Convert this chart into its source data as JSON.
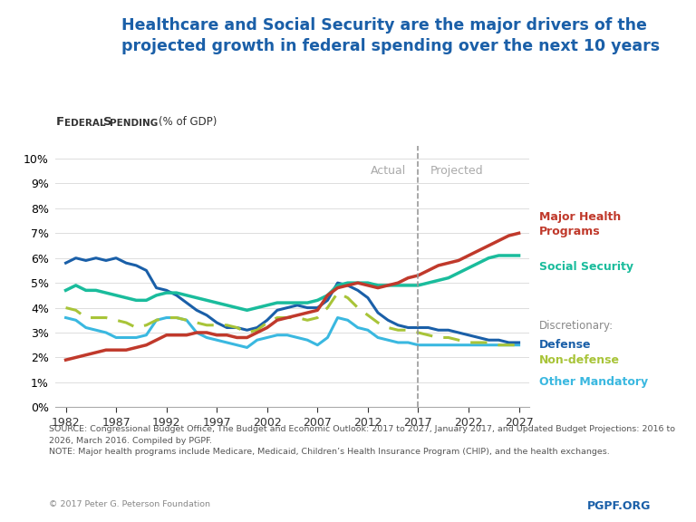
{
  "title_main": "Healthcare and Social Security are the major drivers of the\nprojected growth in federal spending over the next 10 years",
  "ylabel": "Federal Spending (% of GDP)",
  "source_text": "SOURCE: Congressional Budget Office, The Budget and Economic Outlook: 2017 to 2027, January 2017, and Updated Budget Projections: 2016 to\n2026, March 2016. Compiled by PGPF.\nNOTE: Major health programs include Medicare, Medicaid, Children’s Health Insurance Program (CHIP), and the health exchanges.",
  "copyright_text": "© 2017 Peter G. Peterson Foundation",
  "pgpf_text": "PGPF.ORG",
  "actual_label": "Actual",
  "projected_label": "Projected",
  "divider_year": 2017,
  "x_ticks": [
    1982,
    1987,
    1992,
    1997,
    2002,
    2007,
    2012,
    2017,
    2022,
    2027
  ],
  "y_ticks": [
    "0%",
    "1%",
    "2%",
    "3%",
    "4%",
    "5%",
    "6%",
    "7%",
    "8%",
    "9%",
    "10%"
  ],
  "y_values": [
    0,
    1,
    2,
    3,
    4,
    5,
    6,
    7,
    8,
    9,
    10
  ],
  "xlim": [
    1981,
    2028
  ],
  "ylim": [
    0,
    10.5
  ],
  "bg_color": "#ffffff",
  "blue_header": "#1a5fa8",
  "series": {
    "major_health": {
      "color": "#c0392b",
      "label": "Major Health\nPrograms",
      "years": [
        1982,
        1983,
        1984,
        1985,
        1986,
        1987,
        1988,
        1989,
        1990,
        1991,
        1992,
        1993,
        1994,
        1995,
        1996,
        1997,
        1998,
        1999,
        2000,
        2001,
        2002,
        2003,
        2004,
        2005,
        2006,
        2007,
        2008,
        2009,
        2010,
        2011,
        2012,
        2013,
        2014,
        2015,
        2016,
        2017,
        2018,
        2019,
        2020,
        2021,
        2022,
        2023,
        2024,
        2025,
        2026,
        2027
      ],
      "values": [
        1.9,
        2.0,
        2.1,
        2.2,
        2.3,
        2.3,
        2.3,
        2.4,
        2.5,
        2.7,
        2.9,
        2.9,
        2.9,
        3.0,
        3.0,
        2.9,
        2.9,
        2.8,
        2.8,
        3.0,
        3.2,
        3.5,
        3.6,
        3.7,
        3.8,
        3.9,
        4.5,
        4.8,
        4.9,
        5.0,
        4.9,
        4.8,
        4.9,
        5.0,
        5.2,
        5.3,
        5.5,
        5.7,
        5.8,
        5.9,
        6.1,
        6.3,
        6.5,
        6.7,
        6.9,
        7.0
      ]
    },
    "social_security": {
      "color": "#1abc9c",
      "label": "Social Security",
      "years": [
        1982,
        1983,
        1984,
        1985,
        1986,
        1987,
        1988,
        1989,
        1990,
        1991,
        1992,
        1993,
        1994,
        1995,
        1996,
        1997,
        1998,
        1999,
        2000,
        2001,
        2002,
        2003,
        2004,
        2005,
        2006,
        2007,
        2008,
        2009,
        2010,
        2011,
        2012,
        2013,
        2014,
        2015,
        2016,
        2017,
        2018,
        2019,
        2020,
        2021,
        2022,
        2023,
        2024,
        2025,
        2026,
        2027
      ],
      "values": [
        4.7,
        4.9,
        4.7,
        4.7,
        4.6,
        4.5,
        4.4,
        4.3,
        4.3,
        4.5,
        4.6,
        4.6,
        4.5,
        4.4,
        4.3,
        4.2,
        4.1,
        4.0,
        3.9,
        4.0,
        4.1,
        4.2,
        4.2,
        4.2,
        4.2,
        4.3,
        4.5,
        4.9,
        5.0,
        5.0,
        5.0,
        4.9,
        4.9,
        4.9,
        4.9,
        4.9,
        5.0,
        5.1,
        5.2,
        5.4,
        5.6,
        5.8,
        6.0,
        6.1,
        6.1,
        6.1
      ]
    },
    "defense": {
      "color": "#1a5fa8",
      "label": "Defense",
      "years": [
        1982,
        1983,
        1984,
        1985,
        1986,
        1987,
        1988,
        1989,
        1990,
        1991,
        1992,
        1993,
        1994,
        1995,
        1996,
        1997,
        1998,
        1999,
        2000,
        2001,
        2002,
        2003,
        2004,
        2005,
        2006,
        2007,
        2008,
        2009,
        2010,
        2011,
        2012,
        2013,
        2014,
        2015,
        2016,
        2017,
        2018,
        2019,
        2020,
        2021,
        2022,
        2023,
        2024,
        2025,
        2026,
        2027
      ],
      "values": [
        5.8,
        6.0,
        5.9,
        6.0,
        5.9,
        6.0,
        5.8,
        5.7,
        5.5,
        4.8,
        4.7,
        4.5,
        4.2,
        3.9,
        3.7,
        3.4,
        3.2,
        3.2,
        3.1,
        3.2,
        3.5,
        3.9,
        4.0,
        4.1,
        4.0,
        4.0,
        4.3,
        5.0,
        4.9,
        4.7,
        4.4,
        3.8,
        3.5,
        3.3,
        3.2,
        3.2,
        3.2,
        3.1,
        3.1,
        3.0,
        2.9,
        2.8,
        2.7,
        2.7,
        2.6,
        2.6
      ]
    },
    "non_defense": {
      "color": "#a8c438",
      "label": "Non-defense",
      "style": "dashed",
      "years": [
        1982,
        1983,
        1984,
        1985,
        1986,
        1987,
        1988,
        1989,
        1990,
        1991,
        1992,
        1993,
        1994,
        1995,
        1996,
        1997,
        1998,
        1999,
        2000,
        2001,
        2002,
        2003,
        2004,
        2005,
        2006,
        2007,
        2008,
        2009,
        2010,
        2011,
        2012,
        2013,
        2014,
        2015,
        2016,
        2017,
        2018,
        2019,
        2020,
        2021,
        2022,
        2023,
        2024,
        2025,
        2026,
        2027
      ],
      "values": [
        4.0,
        3.9,
        3.6,
        3.6,
        3.6,
        3.5,
        3.4,
        3.2,
        3.3,
        3.5,
        3.6,
        3.6,
        3.5,
        3.4,
        3.3,
        3.3,
        3.3,
        3.2,
        3.0,
        3.1,
        3.4,
        3.6,
        3.6,
        3.6,
        3.5,
        3.6,
        4.0,
        4.6,
        4.4,
        4.0,
        3.7,
        3.4,
        3.2,
        3.1,
        3.1,
        3.0,
        2.9,
        2.8,
        2.8,
        2.7,
        2.6,
        2.6,
        2.6,
        2.5,
        2.5,
        2.5
      ]
    },
    "other_mandatory": {
      "color": "#3ab8e0",
      "label": "Other Mandatory",
      "years": [
        1982,
        1983,
        1984,
        1985,
        1986,
        1987,
        1988,
        1989,
        1990,
        1991,
        1992,
        1993,
        1994,
        1995,
        1996,
        1997,
        1998,
        1999,
        2000,
        2001,
        2002,
        2003,
        2004,
        2005,
        2006,
        2007,
        2008,
        2009,
        2010,
        2011,
        2012,
        2013,
        2014,
        2015,
        2016,
        2017,
        2018,
        2019,
        2020,
        2021,
        2022,
        2023,
        2024,
        2025,
        2026,
        2027
      ],
      "values": [
        3.6,
        3.5,
        3.2,
        3.1,
        3.0,
        2.8,
        2.8,
        2.8,
        2.9,
        3.5,
        3.6,
        3.6,
        3.5,
        3.0,
        2.8,
        2.7,
        2.6,
        2.5,
        2.4,
        2.7,
        2.8,
        2.9,
        2.9,
        2.8,
        2.7,
        2.5,
        2.8,
        3.6,
        3.5,
        3.2,
        3.1,
        2.8,
        2.7,
        2.6,
        2.6,
        2.5,
        2.5,
        2.5,
        2.5,
        2.5,
        2.5,
        2.5,
        2.5,
        2.5,
        2.5,
        2.5
      ]
    }
  }
}
